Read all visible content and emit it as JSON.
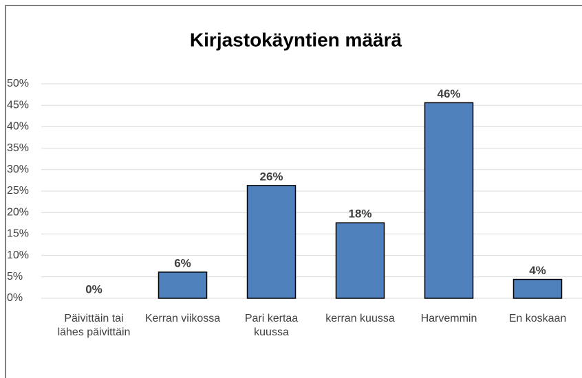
{
  "chart_data": {
    "type": "bar",
    "title": "Kirjastokäyntien määrä",
    "categories": [
      "Päivittäin tai lähes päivittäin",
      "Kerran viikossa",
      "Pari kertaa kuussa",
      "kerran kuussa",
      "Harvemmin",
      "En koskaan"
    ],
    "values": [
      0,
      6.1,
      26.3,
      17.6,
      45.6,
      4.4
    ],
    "value_labels": [
      "0%",
      "6%",
      "26%",
      "18%",
      "46%",
      "4%"
    ],
    "color": "#4f81bd",
    "ylim": [
      0,
      50
    ],
    "yticks": [
      {
        "value": 0,
        "label": "0%"
      },
      {
        "value": 5,
        "label": "5%"
      },
      {
        "value": 10,
        "label": "10%"
      },
      {
        "value": 15,
        "label": "15%"
      },
      {
        "value": 20,
        "label": "20%"
      },
      {
        "value": 25,
        "label": "25%"
      },
      {
        "value": 30,
        "label": "30%"
      },
      {
        "value": 35,
        "label": "35%"
      },
      {
        "value": 40,
        "label": "40%"
      },
      {
        "value": 45,
        "label": "45%"
      },
      {
        "value": 50,
        "label": "50%"
      }
    ],
    "grid": true
  }
}
